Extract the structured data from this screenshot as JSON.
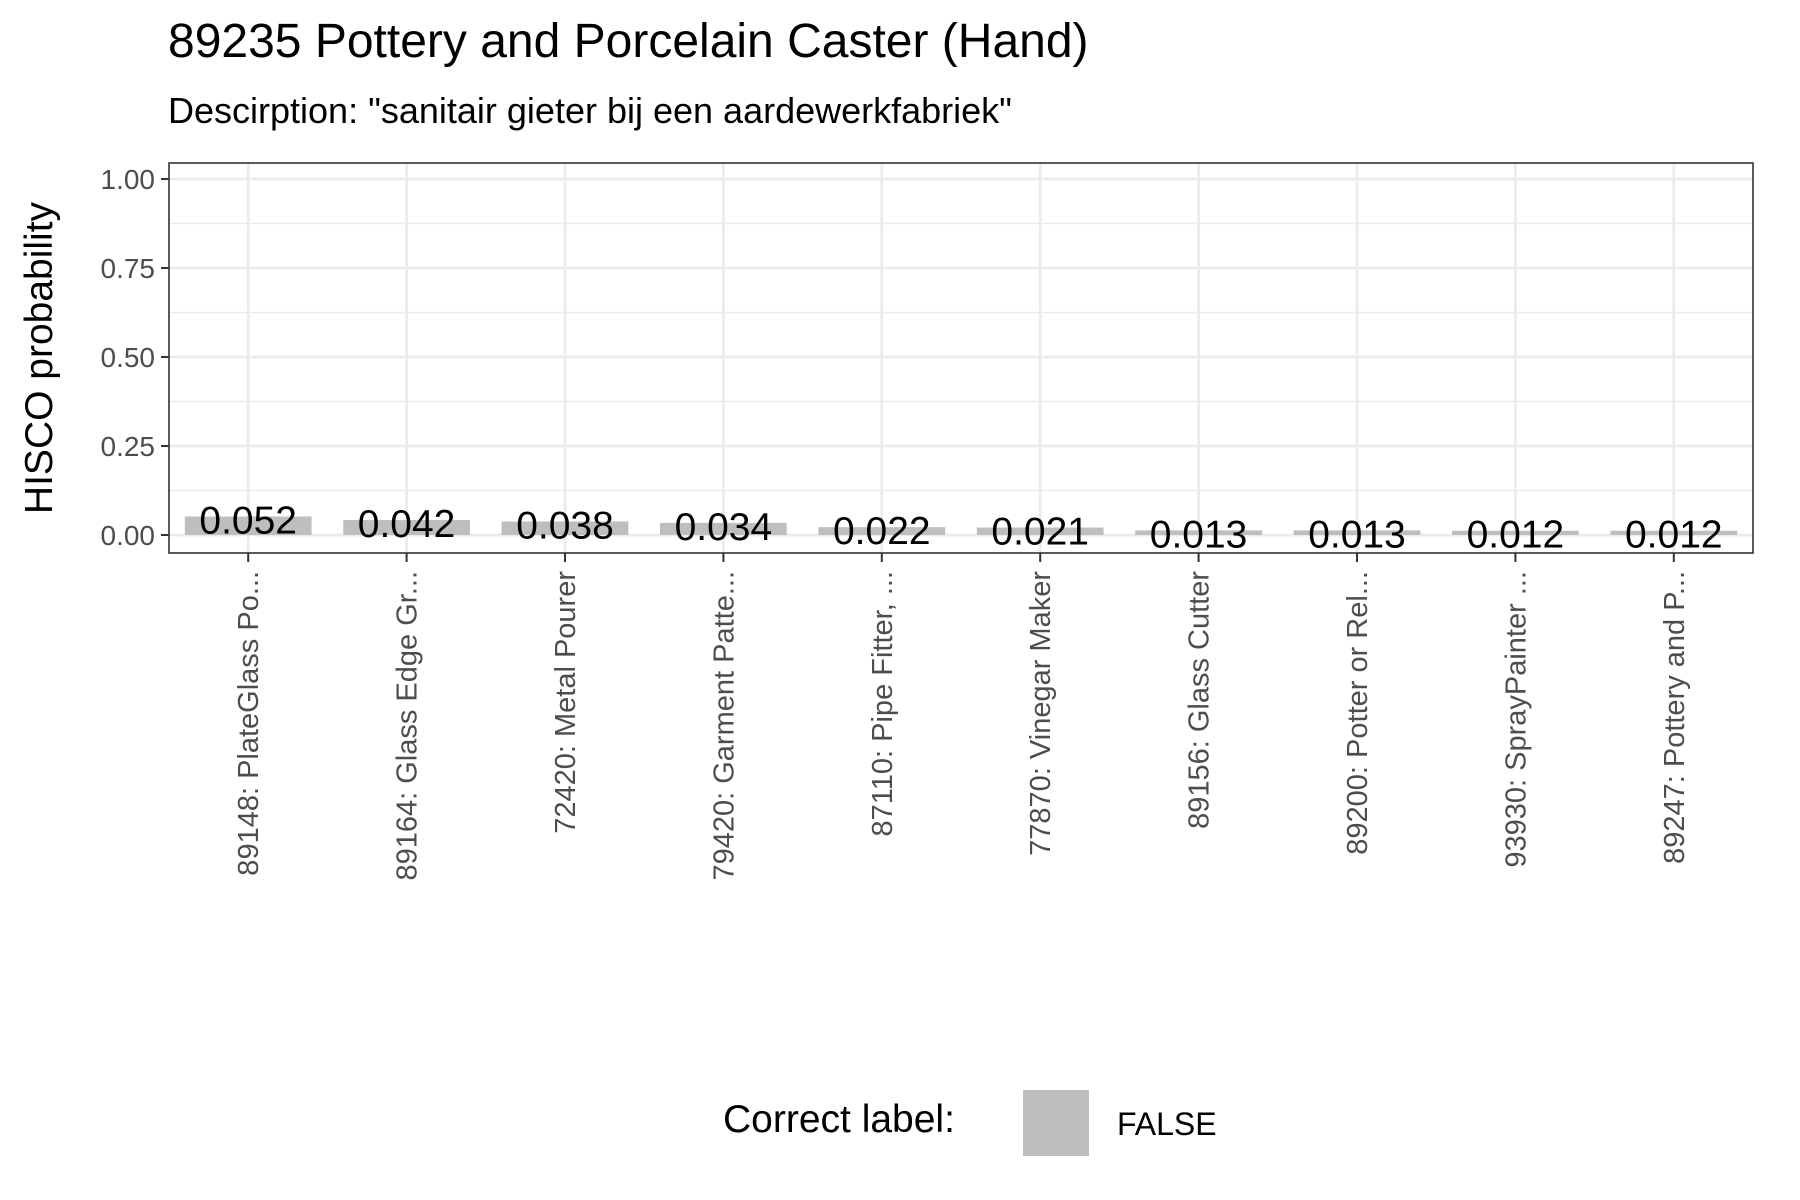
{
  "chart_data": {
    "type": "bar",
    "title": "89235 Pottery and Porcelain Caster (Hand)",
    "subtitle": "Descirption: \"sanitair gieter bij een aardewerkfabriek\"",
    "xlabel": "",
    "ylabel": "HISCO probability",
    "ylim": [
      0,
      1
    ],
    "yticks": [
      "0.00",
      "0.25",
      "0.50",
      "0.75",
      "1.00"
    ],
    "grid": true,
    "categories": [
      "89148: PlateGlass Po...",
      "89164: Glass Edge Gr...",
      "72420: Metal Pourer",
      "79420: Garment Patte...",
      "87110: Pipe Fitter, ...",
      "77870: Vinegar Maker",
      "89156: Glass Cutter",
      "89200: Potter or Rel...",
      "93930: SprayPainter ...",
      "89247: Pottery and P..."
    ],
    "values": [
      0.052,
      0.042,
      0.038,
      0.034,
      0.022,
      0.021,
      0.013,
      0.013,
      0.012,
      0.012
    ],
    "value_labels": [
      "0.052",
      "0.042",
      "0.038",
      "0.034",
      "0.022",
      "0.021",
      "0.013",
      "0.013",
      "0.012",
      "0.012"
    ],
    "bar_color": "#bebebe",
    "legend": {
      "title": "Correct label:",
      "placement": "bottom",
      "entries": [
        {
          "label": "FALSE",
          "color": "#bebebe"
        }
      ]
    }
  }
}
